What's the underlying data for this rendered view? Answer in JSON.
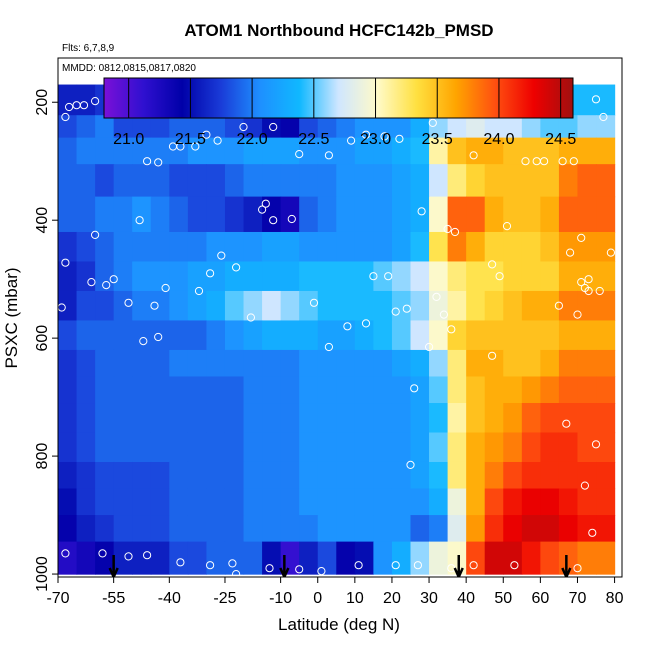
{
  "chart_data": {
    "type": "heatmap",
    "title": "ATOM1 Northbound HCFC142b_PMSD",
    "flights_label": "Flts: 6,7,8,9",
    "dates_label": "MMDD: 0812,0815,0817,0820",
    "xlabel": "Latitude (deg N)",
    "ylabel": "PSXC (mbar)",
    "xlim": [
      -70,
      82
    ],
    "ylim": [
      1005,
      125
    ],
    "y_reversed": true,
    "x_ticks": [
      -70,
      -55,
      -40,
      -25,
      -10,
      0,
      10,
      20,
      30,
      40,
      50,
      60,
      70,
      80
    ],
    "y_ticks": [
      200,
      400,
      600,
      800,
      1000
    ],
    "colorbar": {
      "range": [
        20.8,
        24.6
      ],
      "ticks": [
        21.0,
        21.5,
        22.0,
        22.5,
        23.0,
        23.5,
        24.0,
        24.5
      ],
      "tick_labels": [
        "21.0",
        "21.5",
        "22.0",
        "22.5",
        "23.0",
        "23.5",
        "24.0",
        "24.5"
      ],
      "palette": [
        "#7a10d8",
        "#3010d0",
        "#0000a8",
        "#1a3cd8",
        "#1e90ff",
        "#10b8ff",
        "#cfe6ff",
        "#fffac8",
        "#ffe040",
        "#ffa500",
        "#ff5010",
        "#ee0000",
        "#a01010"
      ]
    },
    "latitude_bins": [
      -67.5,
      -62.5,
      -57.5,
      -52.5,
      -47.5,
      -42.5,
      -37.5,
      -32.5,
      -27.5,
      -22.5,
      -17.5,
      -12.5,
      -7.5,
      -2.5,
      2.5,
      7.5,
      12.5,
      17.5,
      22.5,
      27.5,
      32.5,
      37.5,
      42.5,
      47.5,
      52.5,
      57.5,
      62.5,
      67.5,
      72.5,
      77.5
    ],
    "pressure_levels": [
      {
        "top": 170,
        "bottom": 222,
        "values": [
          21.6,
          21.6,
          21.7,
          21.8,
          21.9,
          22.0,
          22.0,
          22.0,
          22.0,
          22.0,
          22.0,
          22.0,
          22.0,
          22.1,
          22.1,
          22.1,
          22.1,
          22.1,
          22.2,
          22.2,
          22.2,
          22.3,
          22.3,
          22.3,
          22.3,
          22.3,
          22.4,
          22.4,
          22.4,
          22.4
        ]
      },
      {
        "top": 222,
        "bottom": 260,
        "values": [
          21.8,
          21.9,
          22.0,
          21.8,
          21.8,
          21.8,
          21.9,
          21.9,
          21.9,
          21.8,
          21.7,
          21.5,
          21.4,
          21.8,
          21.9,
          22.0,
          22.1,
          22.1,
          22.1,
          22.3,
          22.6,
          22.7,
          22.8,
          22.7,
          22.7,
          22.6,
          22.5,
          22.5,
          22.6,
          22.6
        ]
      },
      {
        "top": 260,
        "bottom": 305,
        "values": [
          21.9,
          22.0,
          22.0,
          22.0,
          22.0,
          22.0,
          22.0,
          22.1,
          22.1,
          22.1,
          22.2,
          22.2,
          22.2,
          22.1,
          22.1,
          22.1,
          22.2,
          22.2,
          22.3,
          22.4,
          23.1,
          23.5,
          23.6,
          23.6,
          23.5,
          23.5,
          23.5,
          23.6,
          23.6,
          23.6
        ]
      },
      {
        "top": 305,
        "bottom": 360,
        "values": [
          21.9,
          21.9,
          21.8,
          21.9,
          21.9,
          21.9,
          21.8,
          21.8,
          21.8,
          21.9,
          22.0,
          22.0,
          22.0,
          22.0,
          22.0,
          22.1,
          22.1,
          22.1,
          22.2,
          22.3,
          22.7,
          23.2,
          23.4,
          23.5,
          23.5,
          23.5,
          23.5,
          23.8,
          23.9,
          23.9
        ]
      },
      {
        "top": 360,
        "bottom": 420,
        "values": [
          21.9,
          21.9,
          22.0,
          22.0,
          22.1,
          22.0,
          21.9,
          21.8,
          21.8,
          21.7,
          21.6,
          21.4,
          21.3,
          21.9,
          22.0,
          22.1,
          22.1,
          22.1,
          22.2,
          22.3,
          23.0,
          23.9,
          23.9,
          23.6,
          23.5,
          23.5,
          23.6,
          23.9,
          23.9,
          23.9
        ]
      },
      {
        "top": 420,
        "bottom": 470,
        "values": [
          21.7,
          21.8,
          21.9,
          22.0,
          22.0,
          22.0,
          22.0,
          22.0,
          22.1,
          22.1,
          22.1,
          22.2,
          22.2,
          22.1,
          22.1,
          22.1,
          22.1,
          22.1,
          22.2,
          22.4,
          23.3,
          23.8,
          23.6,
          23.4,
          23.4,
          23.4,
          23.5,
          23.7,
          23.7,
          23.7
        ]
      },
      {
        "top": 470,
        "bottom": 520,
        "values": [
          21.6,
          21.7,
          21.9,
          22.0,
          22.1,
          22.1,
          22.1,
          22.2,
          22.2,
          22.3,
          22.3,
          22.3,
          22.3,
          22.4,
          22.4,
          22.4,
          22.4,
          22.5,
          22.6,
          22.7,
          23.0,
          23.2,
          23.3,
          23.3,
          23.4,
          23.4,
          23.4,
          23.6,
          23.6,
          23.6
        ]
      },
      {
        "top": 520,
        "bottom": 570,
        "values": [
          21.6,
          21.8,
          21.8,
          21.9,
          22.0,
          22.0,
          22.1,
          22.2,
          22.3,
          22.5,
          22.6,
          22.7,
          22.6,
          22.5,
          22.4,
          22.4,
          22.4,
          22.4,
          22.5,
          22.6,
          22.9,
          23.1,
          23.3,
          23.4,
          23.5,
          23.6,
          23.6,
          23.8,
          23.8,
          23.8
        ]
      },
      {
        "top": 570,
        "bottom": 620,
        "values": [
          21.8,
          21.9,
          21.9,
          21.9,
          21.9,
          21.9,
          21.9,
          21.9,
          22.0,
          22.1,
          22.2,
          22.3,
          22.3,
          22.3,
          22.2,
          22.2,
          22.3,
          22.4,
          22.5,
          22.7,
          23.0,
          23.4,
          23.5,
          23.5,
          23.5,
          23.5,
          23.5,
          23.6,
          23.6,
          23.6
        ]
      },
      {
        "top": 620,
        "bottom": 665,
        "values": [
          21.7,
          21.8,
          21.9,
          21.9,
          21.9,
          21.9,
          22.0,
          22.0,
          22.0,
          22.0,
          22.0,
          22.0,
          22.0,
          22.1,
          22.1,
          22.1,
          22.1,
          22.1,
          22.2,
          22.3,
          22.6,
          23.2,
          23.6,
          23.6,
          23.5,
          23.5,
          23.6,
          23.8,
          23.8,
          23.8
        ]
      },
      {
        "top": 665,
        "bottom": 710,
        "values": [
          21.7,
          21.8,
          21.9,
          21.9,
          21.9,
          21.9,
          21.9,
          21.9,
          21.9,
          21.9,
          22.0,
          22.0,
          22.0,
          22.1,
          22.1,
          22.1,
          22.1,
          22.1,
          22.1,
          22.2,
          22.5,
          23.2,
          23.5,
          23.6,
          23.6,
          23.7,
          23.8,
          23.9,
          23.9,
          23.9
        ]
      },
      {
        "top": 710,
        "bottom": 760,
        "values": [
          21.7,
          21.8,
          21.9,
          21.9,
          21.9,
          21.9,
          21.9,
          21.9,
          21.9,
          21.9,
          22.0,
          22.0,
          22.0,
          22.1,
          22.1,
          22.1,
          22.1,
          22.1,
          22.1,
          22.2,
          22.4,
          23.1,
          23.5,
          23.6,
          23.7,
          23.9,
          24.0,
          24.0,
          24.0,
          24.0
        ]
      },
      {
        "top": 760,
        "bottom": 810,
        "values": [
          21.7,
          21.8,
          21.9,
          21.9,
          21.9,
          21.9,
          21.9,
          21.9,
          21.9,
          21.9,
          22.0,
          22.0,
          22.0,
          22.1,
          22.1,
          22.1,
          22.1,
          22.1,
          22.1,
          22.2,
          22.5,
          23.2,
          23.6,
          23.7,
          23.8,
          24.0,
          24.1,
          24.1,
          24.0,
          24.0
        ]
      },
      {
        "top": 810,
        "bottom": 855,
        "values": [
          21.6,
          21.7,
          21.8,
          21.8,
          21.8,
          21.8,
          21.9,
          21.9,
          21.9,
          21.9,
          22.0,
          22.0,
          22.0,
          22.1,
          22.1,
          22.1,
          22.1,
          22.1,
          22.1,
          22.2,
          22.4,
          23.2,
          23.6,
          23.8,
          24.0,
          24.1,
          24.1,
          24.1,
          24.1,
          24.1
        ]
      },
      {
        "top": 855,
        "bottom": 900,
        "values": [
          21.5,
          21.7,
          21.8,
          21.8,
          21.8,
          21.8,
          21.9,
          21.9,
          21.9,
          21.9,
          22.0,
          22.0,
          22.0,
          22.1,
          22.1,
          22.1,
          22.1,
          22.1,
          22.1,
          22.1,
          22.3,
          22.9,
          23.6,
          24.0,
          24.2,
          24.3,
          24.3,
          24.2,
          24.1,
          24.1
        ]
      },
      {
        "top": 900,
        "bottom": 945,
        "values": [
          21.4,
          21.6,
          21.7,
          21.8,
          21.8,
          21.8,
          21.9,
          21.9,
          21.9,
          21.9,
          22.0,
          22.0,
          22.0,
          22.0,
          22.1,
          22.1,
          22.1,
          22.1,
          22.1,
          21.9,
          22.0,
          22.8,
          23.7,
          24.1,
          24.3,
          24.4,
          24.4,
          24.3,
          24.2,
          24.2
        ]
      },
      {
        "top": 945,
        "bottom": 1000,
        "values": [
          21.2,
          21.3,
          21.4,
          21.6,
          21.6,
          21.6,
          21.8,
          21.8,
          21.9,
          21.9,
          21.9,
          21.5,
          21.1,
          21.6,
          21.8,
          21.4,
          21.5,
          22.1,
          22.3,
          22.6,
          22.9,
          23.0,
          24.0,
          24.4,
          24.4,
          24.2,
          24.0,
          23.9,
          23.8,
          23.8
        ]
      }
    ],
    "observations": [
      {
        "lat": -68,
        "p": 225
      },
      {
        "lat": -67,
        "p": 208
      },
      {
        "lat": -65,
        "p": 205
      },
      {
        "lat": -63,
        "p": 205
      },
      {
        "lat": -60,
        "p": 198
      },
      {
        "lat": -56,
        "p": 188
      },
      {
        "lat": -60,
        "p": 425
      },
      {
        "lat": -68,
        "p": 472
      },
      {
        "lat": -61,
        "p": 505
      },
      {
        "lat": -57,
        "p": 510
      },
      {
        "lat": -55,
        "p": 500
      },
      {
        "lat": -69,
        "p": 548
      },
      {
        "lat": -51,
        "p": 540
      },
      {
        "lat": -48,
        "p": 400
      },
      {
        "lat": -46,
        "p": 300
      },
      {
        "lat": -43,
        "p": 302
      },
      {
        "lat": -39,
        "p": 275
      },
      {
        "lat": -37,
        "p": 275
      },
      {
        "lat": -33,
        "p": 275
      },
      {
        "lat": -30,
        "p": 255
      },
      {
        "lat": -27,
        "p": 265
      },
      {
        "lat": -44,
        "p": 545
      },
      {
        "lat": -41,
        "p": 515
      },
      {
        "lat": -32,
        "p": 520
      },
      {
        "lat": -29,
        "p": 490
      },
      {
        "lat": -26,
        "p": 460
      },
      {
        "lat": -22,
        "p": 480
      },
      {
        "lat": -18,
        "p": 565
      },
      {
        "lat": -47,
        "p": 605
      },
      {
        "lat": -43,
        "p": 598
      },
      {
        "lat": -20,
        "p": 242
      },
      {
        "lat": -12,
        "p": 242
      },
      {
        "lat": -5,
        "p": 288
      },
      {
        "lat": -7,
        "p": 398
      },
      {
        "lat": -12,
        "p": 400
      },
      {
        "lat": -14,
        "p": 372
      },
      {
        "lat": -15,
        "p": 382
      },
      {
        "lat": 3,
        "p": 290
      },
      {
        "lat": 9,
        "p": 265
      },
      {
        "lat": 13,
        "p": 255
      },
      {
        "lat": 18,
        "p": 258
      },
      {
        "lat": 22,
        "p": 262
      },
      {
        "lat": 31,
        "p": 235
      },
      {
        "lat": 28,
        "p": 385
      },
      {
        "lat": -1,
        "p": 540
      },
      {
        "lat": 3,
        "p": 615
      },
      {
        "lat": 8,
        "p": 580
      },
      {
        "lat": 13,
        "p": 575
      },
      {
        "lat": 15,
        "p": 495
      },
      {
        "lat": 19,
        "p": 495
      },
      {
        "lat": 21,
        "p": 555
      },
      {
        "lat": 24,
        "p": 550
      },
      {
        "lat": 32,
        "p": 530
      },
      {
        "lat": 34,
        "p": 560
      },
      {
        "lat": 30,
        "p": 615
      },
      {
        "lat": 26,
        "p": 685
      },
      {
        "lat": 25,
        "p": 815
      },
      {
        "lat": 35,
        "p": 415
      },
      {
        "lat": 37,
        "p": 420
      },
      {
        "lat": 40,
        "p": 182
      },
      {
        "lat": 42,
        "p": 290
      },
      {
        "lat": 51,
        "p": 410
      },
      {
        "lat": 47,
        "p": 475
      },
      {
        "lat": 49,
        "p": 495
      },
      {
        "lat": 36,
        "p": 585
      },
      {
        "lat": 47,
        "p": 630
      },
      {
        "lat": 56,
        "p": 300
      },
      {
        "lat": 59,
        "p": 300
      },
      {
        "lat": 61,
        "p": 300
      },
      {
        "lat": 66,
        "p": 300
      },
      {
        "lat": 69,
        "p": 300
      },
      {
        "lat": 68,
        "p": 455
      },
      {
        "lat": 71,
        "p": 430
      },
      {
        "lat": 71,
        "p": 505
      },
      {
        "lat": 72,
        "p": 515
      },
      {
        "lat": 73,
        "p": 500
      },
      {
        "lat": 73,
        "p": 520
      },
      {
        "lat": 70,
        "p": 560
      },
      {
        "lat": 65,
        "p": 545
      },
      {
        "lat": 76,
        "p": 520
      },
      {
        "lat": 79,
        "p": 455
      },
      {
        "lat": 75,
        "p": 195
      },
      {
        "lat": 77,
        "p": 225
      },
      {
        "lat": 75,
        "p": 780
      },
      {
        "lat": 67,
        "p": 745
      },
      {
        "lat": 72,
        "p": 850
      },
      {
        "lat": 74,
        "p": 930
      },
      {
        "lat": -68,
        "p": 965
      },
      {
        "lat": -58,
        "p": 965
      },
      {
        "lat": -51,
        "p": 970
      },
      {
        "lat": -46,
        "p": 968
      },
      {
        "lat": -37,
        "p": 980
      },
      {
        "lat": -29,
        "p": 985
      },
      {
        "lat": -23,
        "p": 982
      },
      {
        "lat": -22,
        "p": 1000
      },
      {
        "lat": -13,
        "p": 990
      },
      {
        "lat": -5,
        "p": 992
      },
      {
        "lat": 1,
        "p": 995
      },
      {
        "lat": 11,
        "p": 985
      },
      {
        "lat": 21,
        "p": 985
      },
      {
        "lat": 27,
        "p": 985
      },
      {
        "lat": 36,
        "p": 990
      },
      {
        "lat": 42,
        "p": 985
      },
      {
        "lat": 53,
        "p": 985
      },
      {
        "lat": 70,
        "p": 990
      }
    ],
    "flight_arrows_lat": [
      -55,
      -9,
      38,
      67
    ]
  }
}
